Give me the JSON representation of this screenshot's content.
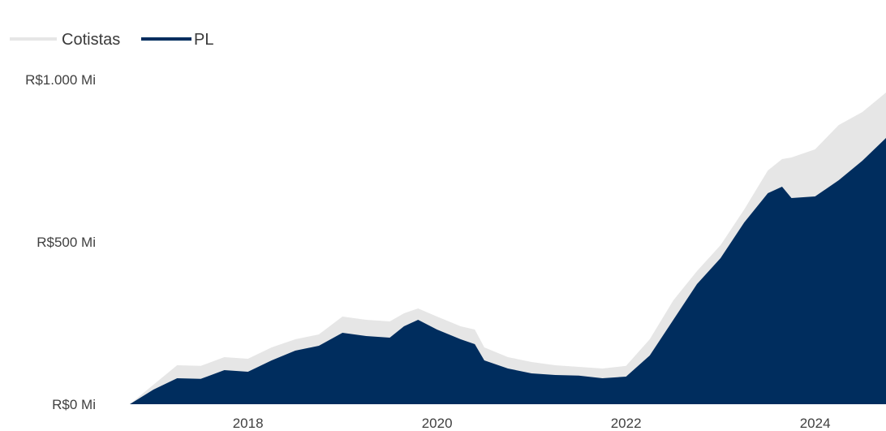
{
  "chart_data": {
    "type": "area",
    "colors": {
      "Cotistas": "#e6e6e6",
      "PL": "#002d5e"
    },
    "legend": {
      "placement": "top-left",
      "items": [
        "Cotistas",
        "PL"
      ]
    },
    "y_axis": {
      "min": 0,
      "max": 1000,
      "ticks": [
        0,
        500,
        1000
      ],
      "tick_labels": [
        "R$0 Mi",
        "R$500 Mi",
        "R$1.000 Mi"
      ]
    },
    "x_axis": {
      "ticks": [
        2018,
        2020,
        2022,
        2024
      ],
      "tick_labels": [
        "2018",
        "2020",
        "2022",
        "2024"
      ],
      "range": [
        2016.75,
        2024.75
      ]
    },
    "grid": false,
    "series": [
      {
        "name": "Cotistas",
        "x": [
          2016.75,
          2017.0,
          2017.25,
          2017.5,
          2017.75,
          2018.0,
          2018.25,
          2018.5,
          2018.75,
          2019.0,
          2019.25,
          2019.5,
          2019.65,
          2019.8,
          2020.0,
          2020.25,
          2020.4,
          2020.5,
          2020.75,
          2021.0,
          2021.25,
          2021.5,
          2021.75,
          2022.0,
          2022.25,
          2022.5,
          2022.75,
          2023.0,
          2023.25,
          2023.5,
          2023.65,
          2023.75,
          2024.0,
          2024.25,
          2024.5,
          2024.75
        ],
        "values": [
          0,
          60,
          120,
          118,
          145,
          140,
          175,
          200,
          215,
          270,
          260,
          255,
          280,
          295,
          270,
          240,
          230,
          175,
          145,
          130,
          120,
          115,
          110,
          118,
          200,
          320,
          410,
          490,
          600,
          720,
          755,
          760,
          785,
          860,
          900,
          960
        ]
      },
      {
        "name": "PL",
        "x": [
          2016.75,
          2017.0,
          2017.25,
          2017.5,
          2017.75,
          2018.0,
          2018.25,
          2018.5,
          2018.75,
          2019.0,
          2019.25,
          2019.5,
          2019.65,
          2019.8,
          2020.0,
          2020.25,
          2020.4,
          2020.5,
          2020.75,
          2021.0,
          2021.25,
          2021.5,
          2021.75,
          2022.0,
          2022.25,
          2022.5,
          2022.75,
          2023.0,
          2023.25,
          2023.5,
          2023.65,
          2023.75,
          2024.0,
          2024.25,
          2024.5,
          2024.75
        ],
        "values": [
          0,
          45,
          80,
          78,
          105,
          100,
          135,
          165,
          180,
          220,
          210,
          205,
          240,
          260,
          230,
          200,
          185,
          135,
          110,
          95,
          90,
          88,
          80,
          85,
          150,
          260,
          370,
          450,
          560,
          650,
          670,
          635,
          640,
          690,
          750,
          820
        ]
      }
    ]
  }
}
